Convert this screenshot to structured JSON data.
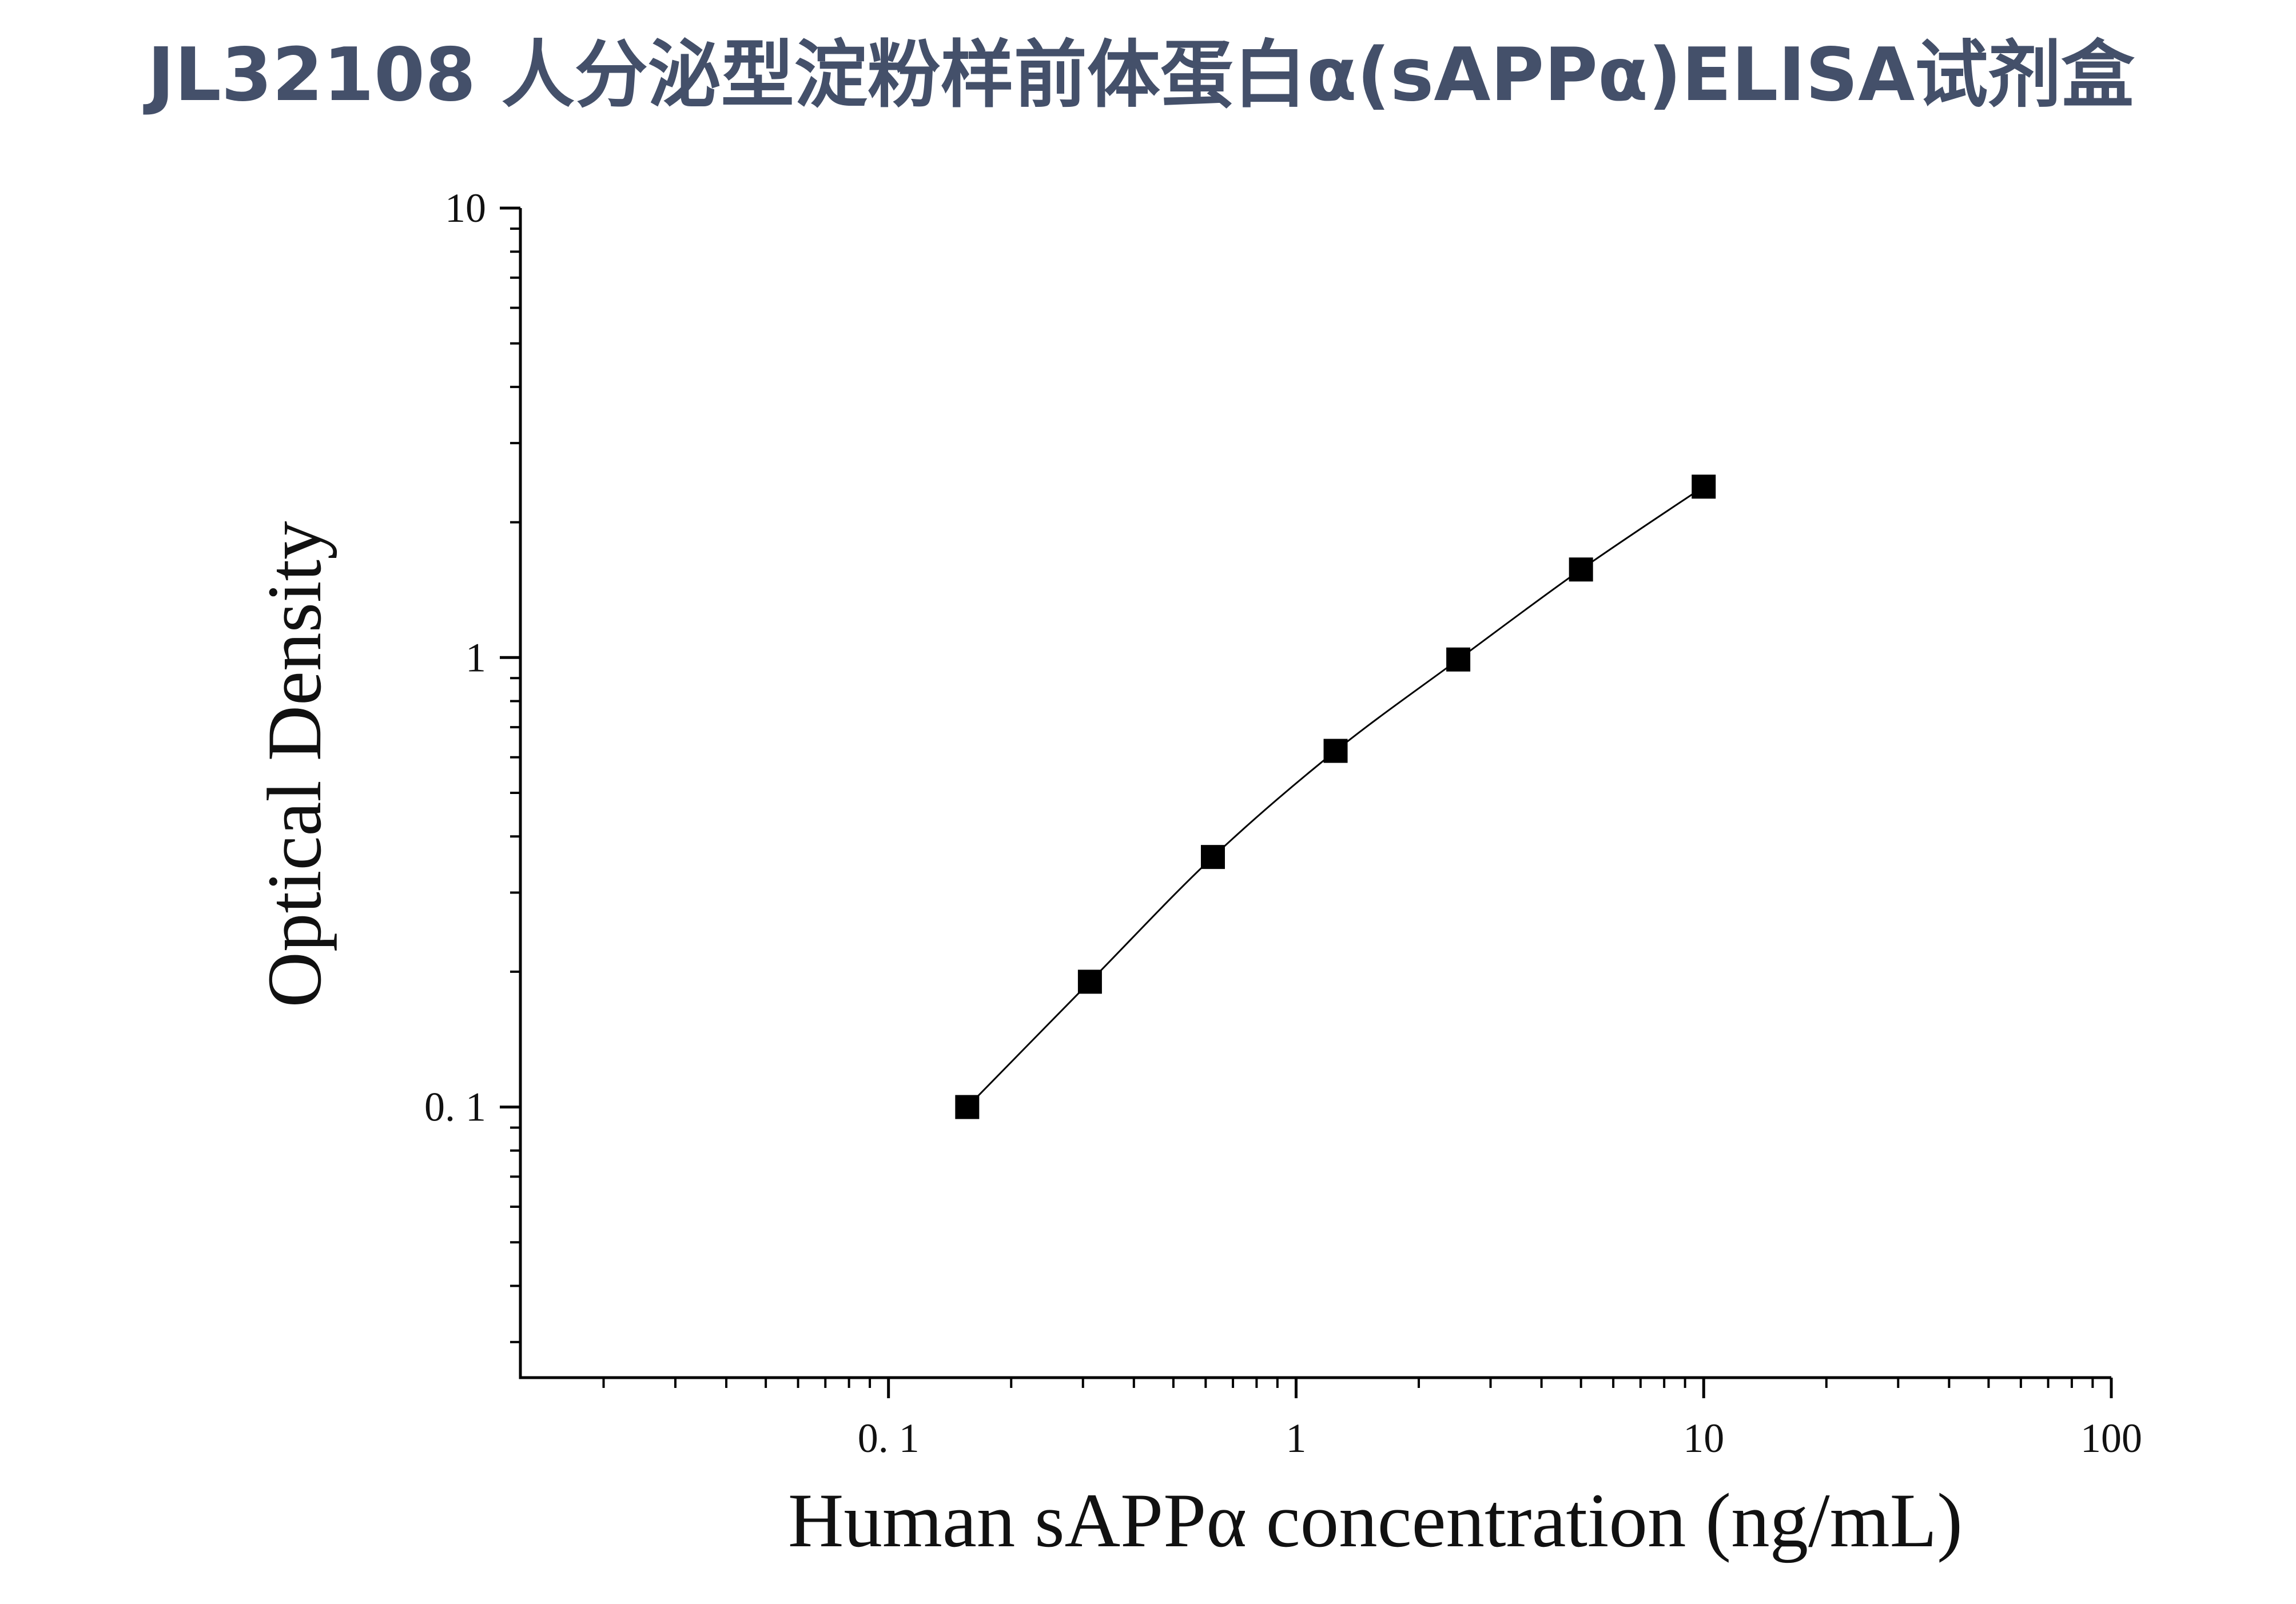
{
  "chart_data": {
    "type": "scatter",
    "title": "JL32108 人分泌型淀粉样前体蛋白α(sAPPα)ELISA试剂盒",
    "x_label": "Human sAPPα concentration (ng/mL)",
    "y_label": "Optical Density",
    "x_log": true,
    "y_log": true,
    "minor_ticks": true,
    "connect": true,
    "xlim": [
      0.0125,
      100
    ],
    "ylim": [
      0.025,
      10
    ],
    "xticks": [
      {
        "value": 0.1,
        "label": "0. 1"
      },
      1,
      10,
      100
    ],
    "yticks": [
      {
        "value": 0.1,
        "label": "0. 1"
      },
      1,
      10
    ],
    "series": [
      {
        "color": "#000000",
        "x": [
          0.156,
          0.312,
          0.625,
          1.25,
          2.5,
          5,
          10
        ],
        "values": [
          0.1,
          0.19,
          0.36,
          0.62,
          0.99,
          1.57,
          2.4
        ]
      }
    ]
  }
}
